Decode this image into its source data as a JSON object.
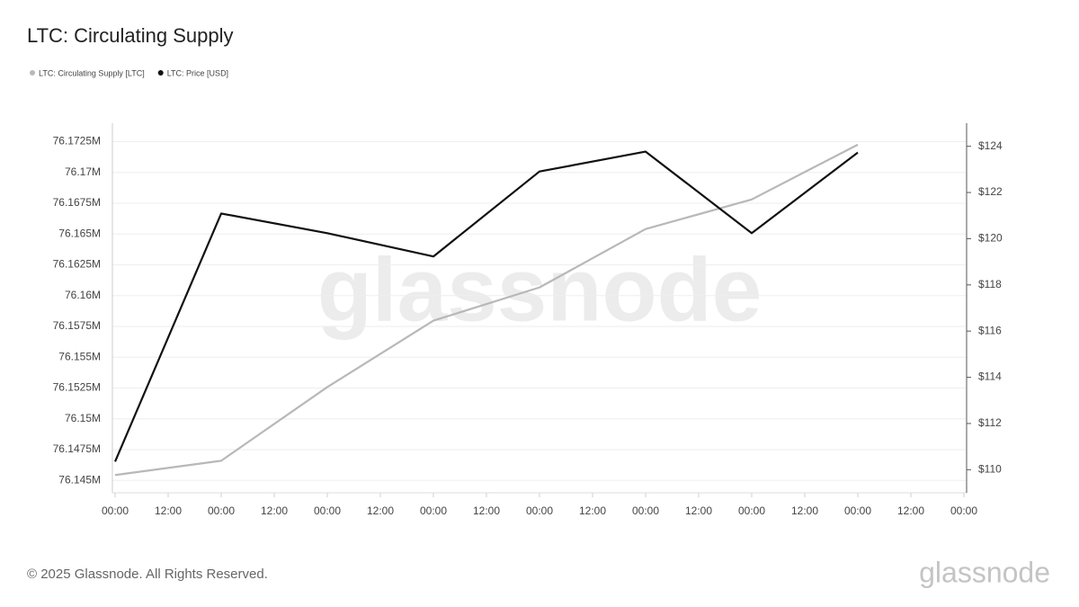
{
  "chart_data": {
    "type": "line",
    "title": "LTC: Circulating Supply",
    "watermark": "glassnode",
    "footer": "© 2025 Glassnode. All Rights Reserved.",
    "logo": "glassnode",
    "x": [
      0,
      24,
      48,
      72,
      96,
      120,
      144,
      168
    ],
    "xlim": [
      0,
      192
    ],
    "xticks": [
      {
        "value": 0,
        "label": "00:00"
      },
      {
        "value": 12,
        "label": "12:00"
      },
      {
        "value": 24,
        "label": "00:00"
      },
      {
        "value": 36,
        "label": "12:00"
      },
      {
        "value": 48,
        "label": "00:00"
      },
      {
        "value": 60,
        "label": "12:00"
      },
      {
        "value": 72,
        "label": "00:00"
      },
      {
        "value": 84,
        "label": "12:00"
      },
      {
        "value": 96,
        "label": "00:00"
      },
      {
        "value": 108,
        "label": "12:00"
      },
      {
        "value": 120,
        "label": "00:00"
      },
      {
        "value": 132,
        "label": "12:00"
      },
      {
        "value": 144,
        "label": "00:00"
      },
      {
        "value": 156,
        "label": "12:00"
      },
      {
        "value": 168,
        "label": "00:00"
      },
      {
        "value": 180,
        "label": "12:00"
      },
      {
        "value": 192,
        "label": "00:00"
      }
    ],
    "ylim": [
      76144000,
      76174000
    ],
    "yticks": [
      {
        "value": 76145000,
        "label": "76.145M"
      },
      {
        "value": 76147500,
        "label": "76.1475M"
      },
      {
        "value": 76150000,
        "label": "76.15M"
      },
      {
        "value": 76152500,
        "label": "76.1525M"
      },
      {
        "value": 76155000,
        "label": "76.155M"
      },
      {
        "value": 76157500,
        "label": "76.1575M"
      },
      {
        "value": 76160000,
        "label": "76.16M"
      },
      {
        "value": 76162500,
        "label": "76.1625M"
      },
      {
        "value": 76165000,
        "label": "76.165M"
      },
      {
        "value": 76167500,
        "label": "76.1675M"
      },
      {
        "value": 76170000,
        "label": "76.17M"
      },
      {
        "value": 76172500,
        "label": "76.1725M"
      }
    ],
    "y2lim": [
      109,
      125
    ],
    "y2ticks": [
      {
        "value": 110,
        "label": "$110"
      },
      {
        "value": 112,
        "label": "$112"
      },
      {
        "value": 114,
        "label": "$114"
      },
      {
        "value": 116,
        "label": "$116"
      },
      {
        "value": 118,
        "label": "$118"
      },
      {
        "value": 120,
        "label": "$120"
      },
      {
        "value": 122,
        "label": "$122"
      },
      {
        "value": 124,
        "label": "$124"
      }
    ],
    "grid": true,
    "legend": "top-left",
    "series": [
      {
        "name": "LTC: Circulating Supply [LTC]",
        "color": "#b8b8b8",
        "values": [
          76145440,
          76146600,
          76152580,
          76157970,
          76160670,
          76165410,
          76167810,
          76172260
        ]
      },
      {
        "name": "LTC: Price [USD]",
        "color": "#111111",
        "axis": "y2",
        "values": [
          110.35,
          121.09,
          120.24,
          119.23,
          122.91,
          123.77,
          120.24,
          123.73
        ]
      }
    ]
  }
}
